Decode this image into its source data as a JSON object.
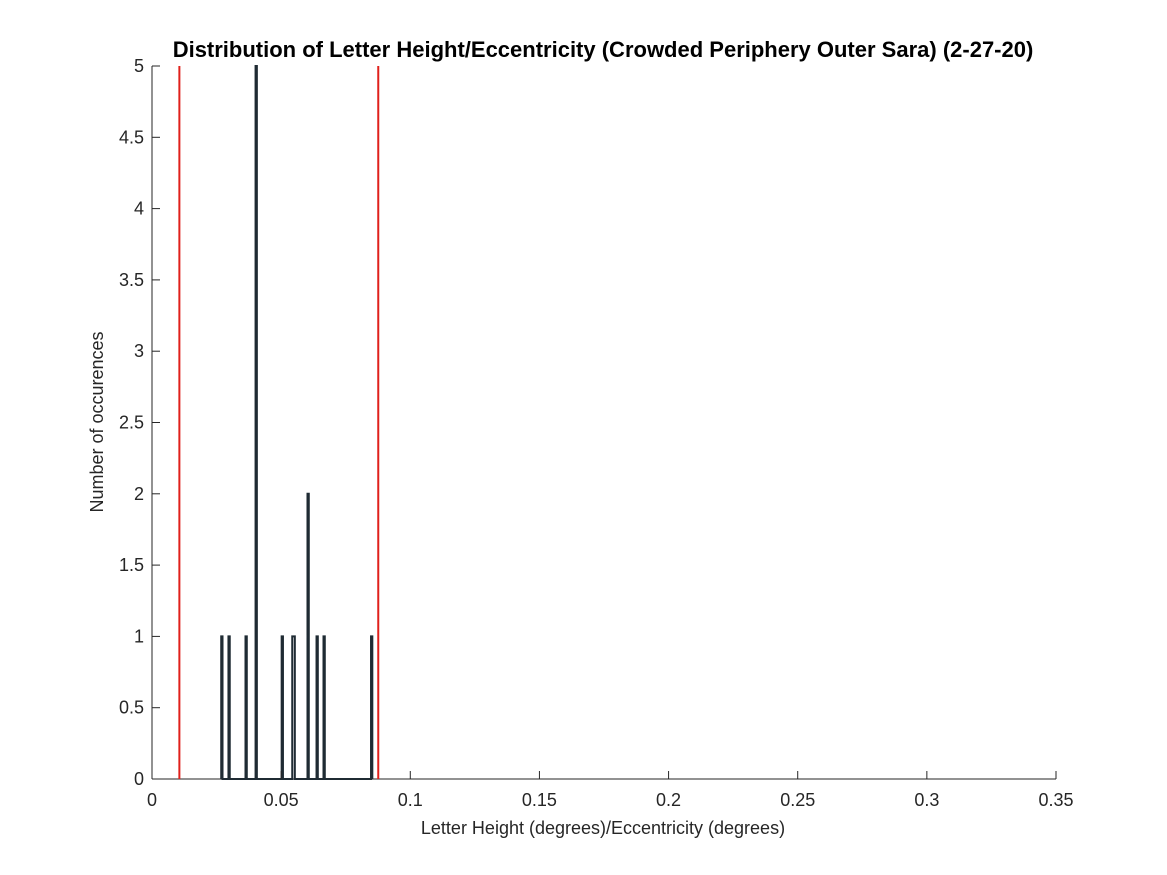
{
  "chart_data": {
    "type": "line",
    "title": "Distribution of Letter Height/Eccentricity (Crowded Periphery Outer Sara) (2-27-20)",
    "xlabel": "Letter Height (degrees)/Eccentricity (degrees)",
    "ylabel": "Number of occurences",
    "xlim": [
      0,
      0.35
    ],
    "ylim": [
      0,
      5
    ],
    "xticks": [
      0,
      0.05,
      0.1,
      0.15,
      0.2,
      0.25,
      0.3,
      0.35
    ],
    "xtick_labels": [
      "0",
      "0.05",
      "0.1",
      "0.15",
      "0.2",
      "0.25",
      "0.3",
      "0.35"
    ],
    "yticks": [
      0,
      0.5,
      1,
      1.5,
      2,
      2.5,
      3,
      3.5,
      4,
      4.5,
      5
    ],
    "ytick_labels": [
      "0",
      "0.5",
      "1",
      "1.5",
      "2",
      "2.5",
      "3",
      "3.5",
      "4",
      "4.5",
      "5"
    ],
    "grid": false,
    "series": [
      {
        "style": "spike-outline",
        "color": "#1f2b33",
        "x": [
          0.0268,
          0.0268,
          0.0273,
          0.0273,
          0.0296,
          0.0296,
          0.0301,
          0.0301,
          0.0362,
          0.0362,
          0.0367,
          0.0367,
          0.0401,
          0.0401,
          0.0406,
          0.0406,
          0.0502,
          0.0502,
          0.0507,
          0.0507,
          0.0543,
          0.0543,
          0.0553,
          0.0553,
          0.0602,
          0.0602,
          0.0607,
          0.0607,
          0.0637,
          0.0637,
          0.0642,
          0.0642,
          0.0664,
          0.0664,
          0.0669,
          0.0669,
          0.0848,
          0.0848,
          0.0853,
          0.0853
        ],
        "y": [
          0,
          1,
          1,
          0,
          0,
          1,
          1,
          0,
          0,
          1,
          1,
          0,
          0,
          5,
          5,
          0,
          0,
          1,
          1,
          0,
          0,
          1,
          1,
          0,
          0,
          2,
          2,
          0,
          0,
          1,
          1,
          0,
          0,
          1,
          1,
          0,
          0,
          1,
          1,
          0
        ]
      }
    ],
    "vlines": [
      {
        "x": 0.0106,
        "color": "#e0201b"
      },
      {
        "x": 0.0876,
        "color": "#e0201b"
      }
    ]
  }
}
